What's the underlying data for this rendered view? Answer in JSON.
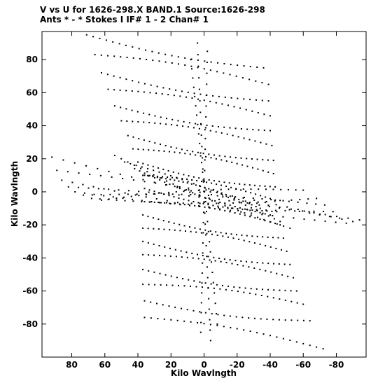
{
  "header": {
    "line1": "V vs U for 1626-298.X BAND.1   Source:1626-298",
    "line2": "Ants * - *    Stokes I  IF# 1 - 2   Chan# 1"
  },
  "chart_data": {
    "type": "scatter",
    "xlabel": "Kilo Wavlngth",
    "ylabel": "Kilo Wavlngth",
    "xlim": [
      98,
      -98
    ],
    "ylim": [
      -100,
      97
    ],
    "x_reversed": true,
    "xticks": [
      80,
      60,
      40,
      20,
      0,
      -20,
      -40,
      -60,
      -80
    ],
    "xtick_labels": [
      "80",
      "60",
      "40",
      "20",
      "0",
      "-20",
      "-40",
      "-60",
      "-80"
    ],
    "yticks": [
      80,
      60,
      40,
      20,
      0,
      -20,
      -40,
      -60,
      -80
    ],
    "ytick_labels": [
      "80",
      "60",
      "40",
      "20",
      "0",
      "-20",
      "-40",
      "-60",
      "-80"
    ],
    "grid": false,
    "marker_color": "#000000",
    "tracks": [
      {
        "start": [
          71,
          95
        ],
        "end": [
          -36,
          75
        ]
      },
      {
        "start": [
          66,
          83
        ],
        "end": [
          -39,
          65
        ]
      },
      {
        "start": [
          62,
          72
        ],
        "end": [
          -39,
          55
        ]
      },
      {
        "start": [
          58,
          62
        ],
        "end": [
          -40,
          46
        ]
      },
      {
        "start": [
          54,
          52
        ],
        "end": [
          -40,
          37
        ]
      },
      {
        "start": [
          50,
          43
        ],
        "end": [
          -41,
          28
        ]
      },
      {
        "start": [
          46,
          34
        ],
        "end": [
          -42,
          19
        ]
      },
      {
        "start": [
          43,
          26
        ],
        "end": [
          -42,
          11
        ]
      },
      {
        "start": [
          40,
          18
        ],
        "end": [
          -43,
          3
        ]
      },
      {
        "start": [
          37,
          10
        ],
        "end": [
          -43,
          -5
        ]
      },
      {
        "start": [
          36,
          2
        ],
        "end": [
          -44,
          -12
        ]
      },
      {
        "start": [
          36,
          -6
        ],
        "end": [
          -46,
          -20
        ]
      },
      {
        "start": [
          37,
          -14
        ],
        "end": [
          -48,
          -28
        ]
      },
      {
        "start": [
          37,
          -22
        ],
        "end": [
          -50,
          -36
        ]
      },
      {
        "start": [
          37,
          -30
        ],
        "end": [
          -52,
          -44
        ]
      },
      {
        "start": [
          37,
          -38
        ],
        "end": [
          -54,
          -52
        ]
      },
      {
        "start": [
          37,
          -47
        ],
        "end": [
          -56,
          -60
        ]
      },
      {
        "start": [
          37,
          -56
        ],
        "end": [
          -60,
          -68
        ]
      },
      {
        "start": [
          36,
          -66
        ],
        "end": [
          -64,
          -78
        ]
      },
      {
        "start": [
          36,
          -76
        ],
        "end": [
          -72,
          -95
        ]
      },
      {
        "start": [
          92,
          21
        ],
        "end": [
          -94,
          -17
        ]
      },
      {
        "start": [
          89,
          13
        ],
        "end": [
          -90,
          -18
        ]
      },
      {
        "start": [
          86,
          7
        ],
        "end": [
          -86,
          -19
        ]
      },
      {
        "start": [
          82,
          3
        ],
        "end": [
          -82,
          -16
        ]
      },
      {
        "start": [
          78,
          0
        ],
        "end": [
          -78,
          -12
        ]
      },
      {
        "start": [
          73,
          -2
        ],
        "end": [
          -73,
          -8
        ]
      },
      {
        "start": [
          68,
          -4
        ],
        "end": [
          -68,
          -4
        ]
      },
      {
        "start": [
          62,
          -5
        ],
        "end": [
          -60,
          1
        ]
      },
      {
        "start": [
          54,
          22
        ],
        "end": [
          -52,
          -22
        ]
      },
      {
        "start": [
          48,
          18
        ],
        "end": [
          -46,
          -18
        ]
      },
      {
        "start": [
          42,
          14
        ],
        "end": [
          -40,
          -14
        ]
      },
      {
        "start": [
          36,
          10
        ],
        "end": [
          -34,
          -10
        ]
      },
      {
        "start": [
          4,
          90
        ],
        "end": [
          -4,
          -90
        ]
      },
      {
        "start": [
          8,
          80
        ],
        "end": [
          -8,
          -80
        ]
      },
      {
        "start": [
          -2,
          85
        ],
        "end": [
          2,
          -85
        ]
      }
    ]
  }
}
